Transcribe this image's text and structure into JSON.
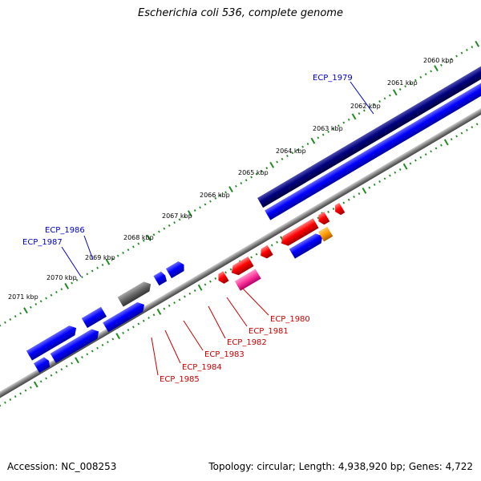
{
  "title": "Escherichia coli 536, complete genome",
  "footer": {
    "accession": "Accession: NC_008253",
    "summary": "Topology: circular; Length: 4,938,920 bp; Genes: 4,722"
  },
  "ruler_ticks": [
    "2060 kbp",
    "2061 kbp",
    "2062 kbp",
    "2063 kbp",
    "2064 kbp",
    "2065 kbp",
    "2066 kbp",
    "2067 kbp",
    "2068 kbp",
    "2069 kbp",
    "2070 kbp",
    "2071 kbp"
  ],
  "gene_labels": [
    {
      "name": "ECP_1979",
      "color": "#0000cc"
    },
    {
      "name": "ECP_1986",
      "color": "#0000cc"
    },
    {
      "name": "ECP_1987",
      "color": "#0000cc"
    },
    {
      "name": "ECP_1980",
      "color": "#cc0000"
    },
    {
      "name": "ECP_1981",
      "color": "#cc0000"
    },
    {
      "name": "ECP_1982",
      "color": "#cc0000"
    },
    {
      "name": "ECP_1983",
      "color": "#cc0000"
    },
    {
      "name": "ECP_1984",
      "color": "#cc0000"
    },
    {
      "name": "ECP_1985",
      "color": "#cc0000"
    }
  ],
  "colors": {
    "forward_cds": "#0000ff",
    "reverse_cds": "#ff0000",
    "long_feature": "#000080",
    "backbone": "#808080",
    "tick": "#228b22",
    "pseudo_gene": "#666666",
    "orange_gene": "#ff9900",
    "pink_gene": "#ff3399"
  }
}
